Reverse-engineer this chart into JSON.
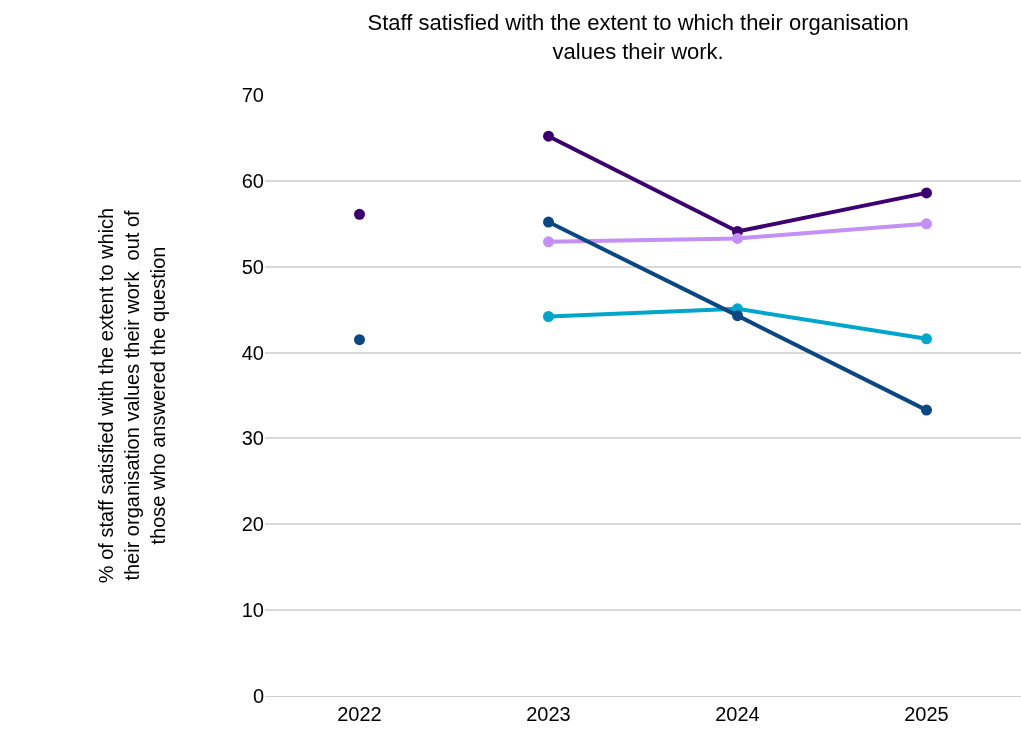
{
  "chart_data": {
    "type": "line",
    "title": "Staff satisfied with the extent to which their organisation values their work.",
    "ylabel": "% of staff satisfied with the extent to which their organisation values their work  out of those who answered the question",
    "categories": [
      "2022",
      "2023",
      "2024",
      "2025"
    ],
    "series": [
      {
        "color": "#3c0070",
        "values": [
          null,
          65.2,
          54.1,
          58.6
        ]
      },
      {
        "color": "#c390f5",
        "values": [
          null,
          52.9,
          53.3,
          55.0
        ]
      },
      {
        "color": "#00a5cc",
        "values": [
          null,
          44.2,
          45.1,
          41.6
        ]
      },
      {
        "color": "#0b4882",
        "values": [
          null,
          55.2,
          44.3,
          33.3
        ]
      },
      {
        "type": "scatter",
        "color": "#3c0070",
        "values": [
          56.1,
          null,
          null,
          null
        ]
      },
      {
        "type": "scatter",
        "color": "#0b4882",
        "values": [
          41.5,
          null,
          null,
          null
        ]
      }
    ],
    "ylim": [
      0,
      70
    ],
    "yticks": [
      0,
      10,
      20,
      30,
      40,
      50,
      60,
      70
    ],
    "grid": "y",
    "marker": "circle"
  }
}
